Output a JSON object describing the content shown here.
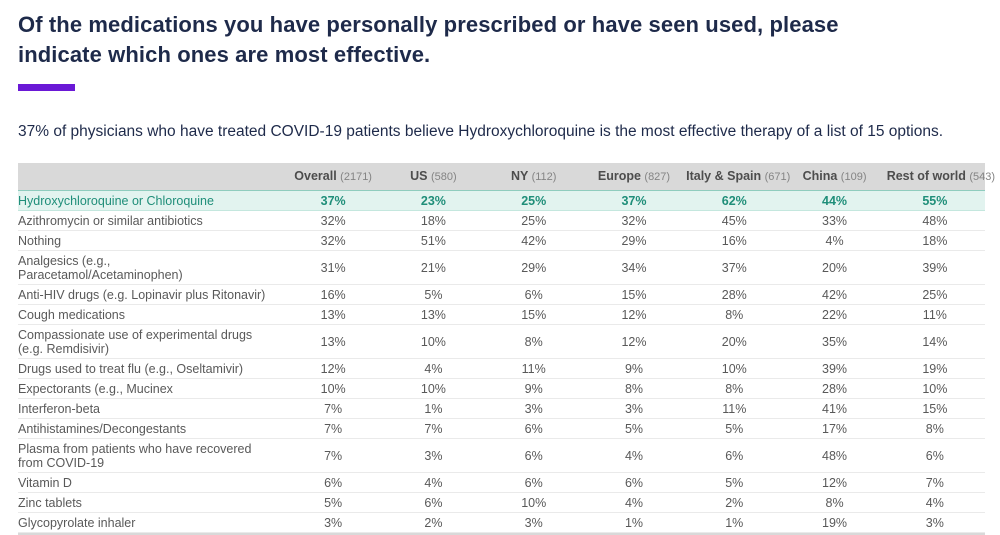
{
  "header": {
    "title": "Of the medications you have personally prescribed or have seen used, please indicate which ones are most effective.",
    "subtitle": "37% of physicians who have treated COVID-19 patients believe Hydroxychloroquine is the most effective therapy of a list of 15 options."
  },
  "colors": {
    "title_navy": "#1e2a4a",
    "accent_purple": "#6a18d6",
    "header_gray": "#d9d9d9",
    "body_text_gray": "#595959",
    "highlight_teal_text": "#1f8e79",
    "highlight_teal_bg": "#e2f3ef"
  },
  "chart_data": {
    "type": "table",
    "title": "Of the medications you have personally prescribed or have seen used, please indicate which ones are most effective.",
    "subtitle": "37% of physicians who have treated COVID-19 patients believe Hydroxychloroquine is the most effective therapy of a list of 15 options.",
    "row_header_label": "",
    "columns": [
      {
        "label": "Overall",
        "n": "(2171)"
      },
      {
        "label": "US",
        "n": "(580)"
      },
      {
        "label": "NY",
        "n": "(112)"
      },
      {
        "label": "Europe",
        "n": "(827)"
      },
      {
        "label": "Italy & Spain",
        "n": "(671)"
      },
      {
        "label": "China",
        "n": "(109)"
      },
      {
        "label": "Rest of world",
        "n": "(543)"
      }
    ],
    "rows": [
      {
        "label": "Hydroxychloroquine or Chloroquine",
        "highlight": true,
        "values": [
          "37%",
          "23%",
          "25%",
          "37%",
          "62%",
          "44%",
          "55%"
        ]
      },
      {
        "label": "Azithromycin or similar antibiotics",
        "highlight": false,
        "values": [
          "32%",
          "18%",
          "25%",
          "32%",
          "45%",
          "33%",
          "48%"
        ]
      },
      {
        "label": "Nothing",
        "highlight": false,
        "values": [
          "32%",
          "51%",
          "42%",
          "29%",
          "16%",
          "4%",
          "18%"
        ]
      },
      {
        "label": "Analgesics (e.g., Paracetamol/Acetaminophen)",
        "highlight": false,
        "values": [
          "31%",
          "21%",
          "29%",
          "34%",
          "37%",
          "20%",
          "39%"
        ]
      },
      {
        "label": "Anti-HIV drugs (e.g. Lopinavir plus Ritonavir)",
        "highlight": false,
        "values": [
          "16%",
          "5%",
          "6%",
          "15%",
          "28%",
          "42%",
          "25%"
        ]
      },
      {
        "label": "Cough medications",
        "highlight": false,
        "values": [
          "13%",
          "13%",
          "15%",
          "12%",
          "8%",
          "22%",
          "11%"
        ]
      },
      {
        "label": "Compassionate use of experimental drugs (e.g. Remdisivir)",
        "highlight": false,
        "values": [
          "13%",
          "10%",
          "8%",
          "12%",
          "20%",
          "35%",
          "14%"
        ]
      },
      {
        "label": "Drugs used to treat flu (e.g., Oseltamivir)",
        "highlight": false,
        "values": [
          "12%",
          "4%",
          "11%",
          "9%",
          "10%",
          "39%",
          "19%"
        ]
      },
      {
        "label": "Expectorants (e.g., Mucinex",
        "highlight": false,
        "values": [
          "10%",
          "10%",
          "9%",
          "8%",
          "8%",
          "28%",
          "10%"
        ]
      },
      {
        "label": "Interferon-beta",
        "highlight": false,
        "values": [
          "7%",
          "1%",
          "3%",
          "3%",
          "11%",
          "41%",
          "15%"
        ]
      },
      {
        "label": "Antihistamines/Decongestants",
        "highlight": false,
        "values": [
          "7%",
          "7%",
          "6%",
          "5%",
          "5%",
          "17%",
          "8%"
        ]
      },
      {
        "label": "Plasma from patients who have recovered from COVID-19",
        "highlight": false,
        "values": [
          "7%",
          "3%",
          "6%",
          "4%",
          "6%",
          "48%",
          "6%"
        ]
      },
      {
        "label": "Vitamin D",
        "highlight": false,
        "values": [
          "6%",
          "4%",
          "6%",
          "6%",
          "5%",
          "12%",
          "7%"
        ]
      },
      {
        "label": "Zinc tablets",
        "highlight": false,
        "values": [
          "5%",
          "6%",
          "10%",
          "4%",
          "2%",
          "8%",
          "4%"
        ]
      },
      {
        "label": "Glycopyrolate inhaler",
        "highlight": false,
        "values": [
          "3%",
          "2%",
          "3%",
          "1%",
          "1%",
          "19%",
          "3%"
        ]
      }
    ]
  }
}
